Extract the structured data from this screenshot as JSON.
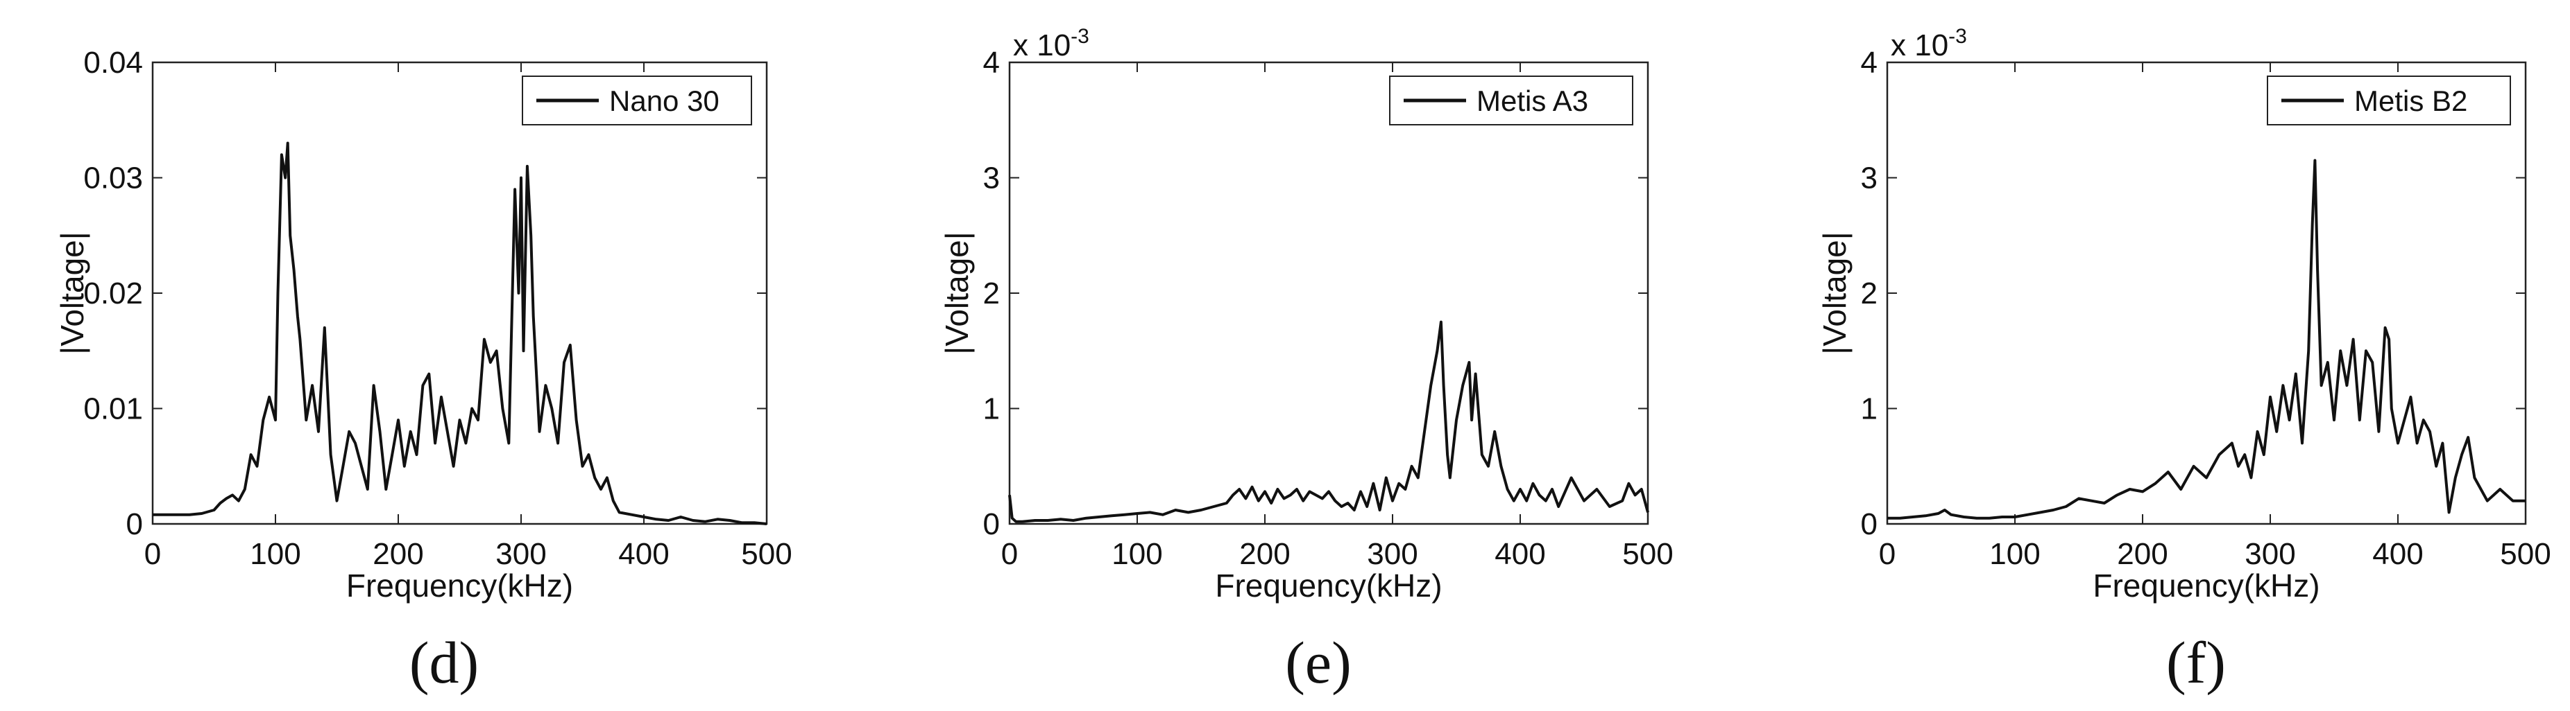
{
  "chart_data": [
    {
      "type": "line",
      "panel": "d",
      "panel_label": "(d)",
      "title": "",
      "legend": "Nano 30",
      "legend_position": "top-right",
      "xlabel": "Frequency(kHz)",
      "ylabel": "|Voltage|",
      "xlim": [
        0,
        500
      ],
      "ylim": [
        0,
        0.04
      ],
      "xticks": [
        0,
        100,
        200,
        300,
        400,
        500
      ],
      "yticks": [
        0,
        0.01,
        0.02,
        0.03,
        0.04
      ],
      "ytick_labels": [
        "0",
        "0.01",
        "0.02",
        "0.03",
        "0.04"
      ],
      "exponent": "",
      "series": [
        {
          "name": "Nano 30",
          "x": [
            0,
            10,
            20,
            30,
            40,
            50,
            55,
            60,
            65,
            70,
            75,
            80,
            85,
            90,
            95,
            100,
            102,
            105,
            108,
            110,
            112,
            115,
            118,
            120,
            125,
            130,
            135,
            140,
            145,
            150,
            155,
            160,
            165,
            170,
            175,
            180,
            185,
            190,
            195,
            200,
            205,
            210,
            215,
            220,
            225,
            230,
            235,
            240,
            245,
            250,
            255,
            260,
            265,
            270,
            275,
            280,
            285,
            290,
            295,
            298,
            300,
            302,
            305,
            308,
            310,
            315,
            320,
            325,
            330,
            335,
            340,
            345,
            350,
            355,
            360,
            365,
            370,
            375,
            380,
            390,
            400,
            410,
            420,
            430,
            440,
            450,
            460,
            470,
            480,
            490,
            500
          ],
          "y": [
            0.0008,
            0.0008,
            0.0008,
            0.0008,
            0.0009,
            0.0012,
            0.0018,
            0.0022,
            0.0025,
            0.002,
            0.003,
            0.006,
            0.005,
            0.009,
            0.011,
            0.009,
            0.02,
            0.032,
            0.03,
            0.033,
            0.025,
            0.022,
            0.018,
            0.016,
            0.009,
            0.012,
            0.008,
            0.017,
            0.006,
            0.002,
            0.005,
            0.008,
            0.007,
            0.005,
            0.003,
            0.012,
            0.008,
            0.003,
            0.006,
            0.009,
            0.005,
            0.008,
            0.006,
            0.012,
            0.013,
            0.007,
            0.011,
            0.008,
            0.005,
            0.009,
            0.007,
            0.01,
            0.009,
            0.016,
            0.014,
            0.015,
            0.01,
            0.007,
            0.029,
            0.02,
            0.03,
            0.015,
            0.031,
            0.025,
            0.018,
            0.008,
            0.012,
            0.01,
            0.007,
            0.014,
            0.0155,
            0.009,
            0.005,
            0.006,
            0.004,
            0.003,
            0.004,
            0.002,
            0.001,
            0.0008,
            0.0006,
            0.0004,
            0.0003,
            0.0006,
            0.0003,
            0.0002,
            0.0004,
            0.0003,
            0.0001,
            0.0001,
            0.0
          ]
        }
      ]
    },
    {
      "type": "line",
      "panel": "e",
      "panel_label": "(e)",
      "title": "",
      "legend": "Metis A3",
      "legend_position": "top-right",
      "xlabel": "Frequency(kHz)",
      "ylabel": "|Voltage|",
      "xlim": [
        0,
        500
      ],
      "ylim": [
        0,
        4
      ],
      "xticks": [
        0,
        100,
        200,
        300,
        400,
        500
      ],
      "yticks": [
        0,
        1,
        2,
        3,
        4
      ],
      "ytick_labels": [
        "0",
        "1",
        "2",
        "3",
        "4"
      ],
      "exponent": "x 10",
      "exponent_power": "-3",
      "series": [
        {
          "name": "Metis A3",
          "x": [
            0,
            2,
            5,
            10,
            20,
            30,
            40,
            50,
            60,
            70,
            80,
            90,
            100,
            110,
            120,
            130,
            140,
            150,
            160,
            170,
            175,
            180,
            185,
            190,
            195,
            200,
            205,
            210,
            215,
            220,
            225,
            230,
            235,
            240,
            245,
            250,
            255,
            260,
            265,
            270,
            275,
            280,
            285,
            290,
            295,
            300,
            305,
            310,
            315,
            320,
            325,
            330,
            335,
            338,
            340,
            343,
            345,
            350,
            355,
            360,
            362,
            365,
            370,
            375,
            380,
            385,
            390,
            395,
            400,
            405,
            410,
            415,
            420,
            425,
            430,
            440,
            450,
            460,
            470,
            480,
            485,
            490,
            495,
            500
          ],
          "y": [
            0.25,
            0.05,
            0.02,
            0.02,
            0.03,
            0.03,
            0.04,
            0.03,
            0.05,
            0.06,
            0.07,
            0.08,
            0.09,
            0.1,
            0.08,
            0.12,
            0.1,
            0.12,
            0.15,
            0.18,
            0.25,
            0.3,
            0.22,
            0.32,
            0.2,
            0.28,
            0.18,
            0.3,
            0.22,
            0.25,
            0.3,
            0.2,
            0.28,
            0.25,
            0.22,
            0.28,
            0.2,
            0.15,
            0.18,
            0.12,
            0.28,
            0.15,
            0.35,
            0.12,
            0.4,
            0.2,
            0.35,
            0.3,
            0.5,
            0.4,
            0.8,
            1.2,
            1.5,
            1.75,
            1.2,
            0.6,
            0.4,
            0.9,
            1.2,
            1.4,
            0.9,
            1.3,
            0.6,
            0.5,
            0.8,
            0.5,
            0.3,
            0.2,
            0.3,
            0.2,
            0.35,
            0.25,
            0.2,
            0.3,
            0.15,
            0.4,
            0.2,
            0.3,
            0.15,
            0.2,
            0.35,
            0.25,
            0.3,
            0.1
          ]
        }
      ]
    },
    {
      "type": "line",
      "panel": "f",
      "panel_label": "(f)",
      "title": "",
      "legend": "Metis B2",
      "legend_position": "top-right",
      "xlabel": "Frequency(kHz)",
      "ylabel": "|Voltage|",
      "xlim": [
        0,
        500
      ],
      "ylim": [
        0,
        4
      ],
      "xticks": [
        0,
        100,
        200,
        300,
        400,
        500
      ],
      "yticks": [
        0,
        1,
        2,
        3,
        4
      ],
      "ytick_labels": [
        "0",
        "1",
        "2",
        "3",
        "4"
      ],
      "exponent": "x 10",
      "exponent_power": "-3",
      "series": [
        {
          "name": "Metis B2",
          "x": [
            0,
            10,
            20,
            30,
            40,
            45,
            50,
            60,
            70,
            80,
            90,
            100,
            110,
            120,
            130,
            140,
            150,
            160,
            170,
            180,
            190,
            200,
            210,
            220,
            230,
            240,
            250,
            260,
            270,
            275,
            280,
            285,
            290,
            295,
            300,
            305,
            310,
            315,
            320,
            325,
            330,
            333,
            335,
            337,
            340,
            345,
            350,
            355,
            360,
            365,
            370,
            375,
            380,
            385,
            390,
            393,
            395,
            400,
            405,
            410,
            415,
            420,
            425,
            430,
            435,
            440,
            445,
            450,
            455,
            460,
            465,
            470,
            480,
            490,
            500
          ],
          "y": [
            0.05,
            0.05,
            0.06,
            0.07,
            0.09,
            0.12,
            0.08,
            0.06,
            0.05,
            0.05,
            0.06,
            0.06,
            0.08,
            0.1,
            0.12,
            0.15,
            0.22,
            0.2,
            0.18,
            0.25,
            0.3,
            0.28,
            0.35,
            0.45,
            0.3,
            0.5,
            0.4,
            0.6,
            0.7,
            0.5,
            0.6,
            0.4,
            0.8,
            0.6,
            1.1,
            0.8,
            1.2,
            0.9,
            1.3,
            0.7,
            1.5,
            2.6,
            3.15,
            2.2,
            1.2,
            1.4,
            0.9,
            1.5,
            1.2,
            1.6,
            0.9,
            1.5,
            1.4,
            0.8,
            1.7,
            1.6,
            1.0,
            0.7,
            0.9,
            1.1,
            0.7,
            0.9,
            0.8,
            0.5,
            0.7,
            0.1,
            0.4,
            0.6,
            0.75,
            0.4,
            0.3,
            0.2,
            0.3,
            0.2,
            0.2
          ]
        }
      ]
    }
  ]
}
